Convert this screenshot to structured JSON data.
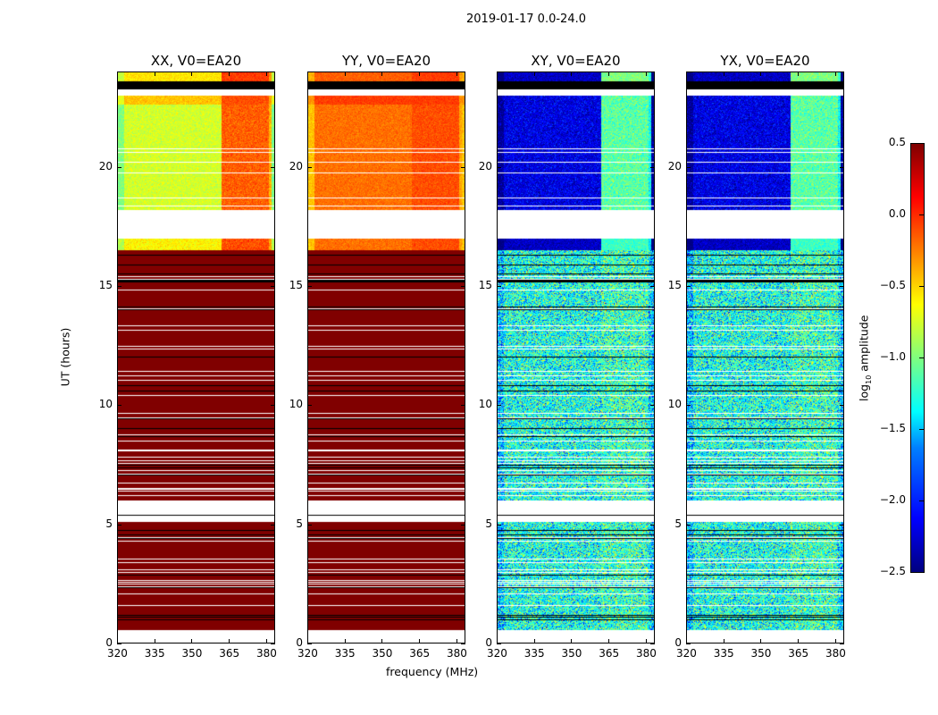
{
  "suptitle": "2019-01-17 0.0-24.0",
  "chart_data": {
    "type": "heatmap",
    "xlabel": "frequency (MHz)",
    "ylabel": "UT (hours)",
    "xlim": [
      320,
      383.6
    ],
    "ylim": [
      0,
      24
    ],
    "xticks": [
      320,
      335,
      350,
      365,
      380
    ],
    "yticks": [
      0,
      5,
      10,
      15,
      20
    ],
    "rfi_band_mhz": [
      362,
      382
    ],
    "blank_ut": [
      [
        0,
        0.55
      ],
      [
        5.1,
        6.0
      ],
      [
        17.0,
        18.2
      ],
      [
        23.0,
        23.25
      ]
    ],
    "flagged_ut": [
      [
        23.25,
        23.6
      ]
    ],
    "colorbar": {
      "label": "log10 amplitude",
      "label_main": "log",
      "label_sub": "10",
      "label_rest": " amplitude",
      "range": [
        -2.5,
        0.5
      ],
      "ticks": [
        "0.5",
        "0.0",
        "−0.5",
        "−1.0",
        "−1.5",
        "−2.0",
        "−2.5"
      ],
      "colormap": "jet"
    },
    "panels": [
      {
        "title": "XX, V0=EA20",
        "segments": [
          {
            "ut": [
              0.55,
              16.5
            ],
            "base": 0.5,
            "rfi": 0.5,
            "noise": 0
          },
          {
            "ut": [
              16.5,
              17.0
            ],
            "base": -0.6,
            "rfi": -0.1,
            "noise": 0.08
          },
          {
            "ut": [
              18.2,
              22.6
            ],
            "base": -0.75,
            "rfi": -0.15,
            "noise": 0.08
          },
          {
            "ut": [
              22.6,
              23.0
            ],
            "base": -0.45,
            "rfi": -0.1,
            "noise": 0.06
          },
          {
            "ut": [
              23.6,
              24
            ],
            "base": -0.55,
            "rfi": -0.05,
            "noise": 0.06
          }
        ]
      },
      {
        "title": "YY, V0=EA20",
        "segments": [
          {
            "ut": [
              0.55,
              16.5
            ],
            "base": 0.5,
            "rfi": 0.5,
            "noise": 0
          },
          {
            "ut": [
              16.5,
              17.0
            ],
            "base": -0.2,
            "rfi": -0.1,
            "noise": 0.06
          },
          {
            "ut": [
              18.2,
              22.6
            ],
            "base": -0.2,
            "rfi": -0.1,
            "noise": 0.06
          },
          {
            "ut": [
              22.6,
              23.0
            ],
            "base": -0.05,
            "rfi": -0.05,
            "noise": 0.05
          },
          {
            "ut": [
              23.6,
              24
            ],
            "base": -0.15,
            "rfi": -0.05,
            "noise": 0.05
          }
        ]
      },
      {
        "title": "XY, V0=EA20",
        "segments": [
          {
            "ut": [
              0.55,
              16.5
            ],
            "base": -1.3,
            "rfi": -1.2,
            "noise": 0.35
          },
          {
            "ut": [
              16.5,
              17.0
            ],
            "base": -2.3,
            "rfi": -1.2,
            "noise": 0.1
          },
          {
            "ut": [
              18.2,
              23.0
            ],
            "base": -2.2,
            "rfi": -1.1,
            "noise": 0.15
          },
          {
            "ut": [
              23.6,
              24
            ],
            "base": -2.3,
            "rfi": -1.0,
            "noise": 0.1
          }
        ]
      },
      {
        "title": "YX, V0=EA20",
        "segments": [
          {
            "ut": [
              0.55,
              16.5
            ],
            "base": -1.3,
            "rfi": -1.2,
            "noise": 0.35
          },
          {
            "ut": [
              16.5,
              17.0
            ],
            "base": -2.3,
            "rfi": -1.2,
            "noise": 0.1
          },
          {
            "ut": [
              18.2,
              23.0
            ],
            "base": -2.2,
            "rfi": -1.1,
            "noise": 0.15
          },
          {
            "ut": [
              23.6,
              24
            ],
            "base": -2.3,
            "rfi": -1.0,
            "noise": 0.1
          }
        ]
      }
    ]
  }
}
